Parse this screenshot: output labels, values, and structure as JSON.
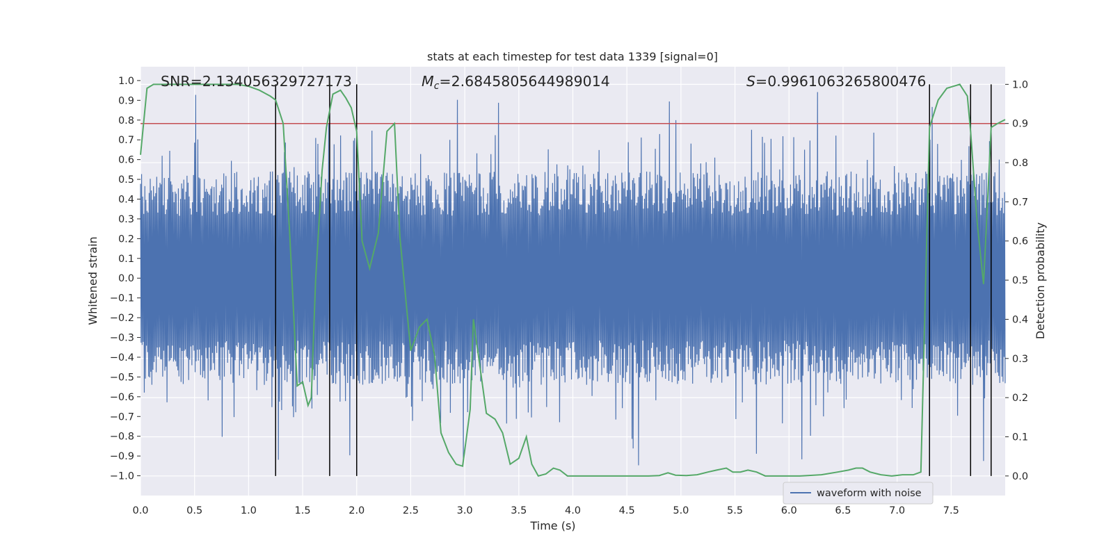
{
  "chart_data": {
    "type": "line",
    "title": "stats at each timestep for test data 1339 [signal=0]",
    "xlabel": "Time (s)",
    "ylabel": "Whitened strain",
    "y2label": "Detection probability",
    "xlim": [
      0.0,
      8.0
    ],
    "ylim": [
      -1.1,
      1.07
    ],
    "y2lim": [
      -0.05,
      1.045
    ],
    "xticks": [
      "0.0",
      "0.5",
      "1.0",
      "1.5",
      "2.0",
      "2.5",
      "3.0",
      "3.5",
      "4.0",
      "4.5",
      "5.0",
      "5.5",
      "6.0",
      "6.5",
      "7.0",
      "7.5"
    ],
    "yticks": [
      "1.0",
      "0.9",
      "0.8",
      "0.7",
      "0.6",
      "0.5",
      "0.4",
      "0.3",
      "0.2",
      "0.1",
      "0.0",
      "−0.1",
      "−0.2",
      "−0.3",
      "−0.4",
      "−0.5",
      "−0.6",
      "−0.7",
      "−0.8",
      "−0.9",
      "−1.0"
    ],
    "y2ticks": [
      "1.0",
      "0.9",
      "0.8",
      "0.7",
      "0.6",
      "0.5",
      "0.4",
      "0.3",
      "0.2",
      "0.1",
      "0.0"
    ],
    "annotations": {
      "snr": "SNR=2.134056329727173",
      "mc_prefix": "M",
      "mc_sub": "c",
      "mc_value": "=2.6845805644989014",
      "s_prefix": "S",
      "s_value": "=0.9961063265800476"
    },
    "legend": {
      "label": "waveform with noise",
      "placement": "lower-right"
    },
    "threshold": {
      "value": 0.9,
      "axis": "right",
      "color": "#c44e52"
    },
    "vertical_lines": [
      1.25,
      1.75,
      2.0,
      7.3,
      7.68,
      7.87
    ],
    "series": [
      {
        "name": "waveform with noise",
        "color": "#4c72b0",
        "axis": "left",
        "kind": "noise",
        "mean": 0.0,
        "typical_amplitude": 0.45,
        "peak_max": 0.98,
        "peak_min": -0.99
      },
      {
        "name": "detection probability",
        "color": "#55a868",
        "axis": "right",
        "x": [
          0.0,
          0.06,
          0.12,
          0.3,
          0.6,
          0.9,
          1.0,
          1.1,
          1.2,
          1.25,
          1.32,
          1.38,
          1.45,
          1.5,
          1.55,
          1.58,
          1.62,
          1.68,
          1.72,
          1.78,
          1.85,
          1.9,
          1.95,
          2.0,
          2.05,
          2.12,
          2.2,
          2.28,
          2.35,
          2.4,
          2.5,
          2.58,
          2.65,
          2.72,
          2.78,
          2.85,
          2.92,
          2.98,
          3.05,
          3.08,
          3.13,
          3.2,
          3.28,
          3.35,
          3.42,
          3.5,
          3.57,
          3.62,
          3.68,
          3.75,
          3.82,
          3.88,
          3.95,
          4.1,
          4.4,
          4.7,
          4.8,
          4.88,
          4.95,
          5.05,
          5.15,
          5.25,
          5.33,
          5.42,
          5.48,
          5.55,
          5.62,
          5.7,
          5.78,
          5.9,
          6.1,
          6.3,
          6.45,
          6.55,
          6.62,
          6.68,
          6.75,
          6.85,
          6.95,
          7.05,
          7.15,
          7.22,
          7.3,
          7.38,
          7.46,
          7.52,
          7.58,
          7.65,
          7.68,
          7.74,
          7.8,
          7.87,
          7.93,
          8.0
        ],
        "y": [
          0.82,
          0.99,
          1.0,
          1.0,
          1.0,
          1.0,
          0.995,
          0.985,
          0.97,
          0.96,
          0.9,
          0.62,
          0.23,
          0.24,
          0.18,
          0.2,
          0.5,
          0.78,
          0.89,
          0.975,
          0.985,
          0.965,
          0.94,
          0.88,
          0.6,
          0.53,
          0.62,
          0.88,
          0.9,
          0.61,
          0.32,
          0.38,
          0.4,
          0.31,
          0.11,
          0.06,
          0.03,
          0.025,
          0.17,
          0.4,
          0.3,
          0.16,
          0.145,
          0.11,
          0.03,
          0.045,
          0.1,
          0.03,
          0.0,
          0.005,
          0.02,
          0.015,
          0.0,
          0.0,
          0.0,
          0.0,
          0.001,
          0.008,
          0.002,
          0.001,
          0.003,
          0.01,
          0.015,
          0.02,
          0.01,
          0.01,
          0.015,
          0.01,
          0.0,
          0.0,
          0.0,
          0.003,
          0.01,
          0.015,
          0.02,
          0.02,
          0.01,
          0.003,
          0.0,
          0.003,
          0.003,
          0.01,
          0.89,
          0.96,
          0.99,
          0.995,
          1.0,
          0.97,
          0.88,
          0.65,
          0.49,
          0.89,
          0.9,
          0.91
        ]
      }
    ]
  }
}
